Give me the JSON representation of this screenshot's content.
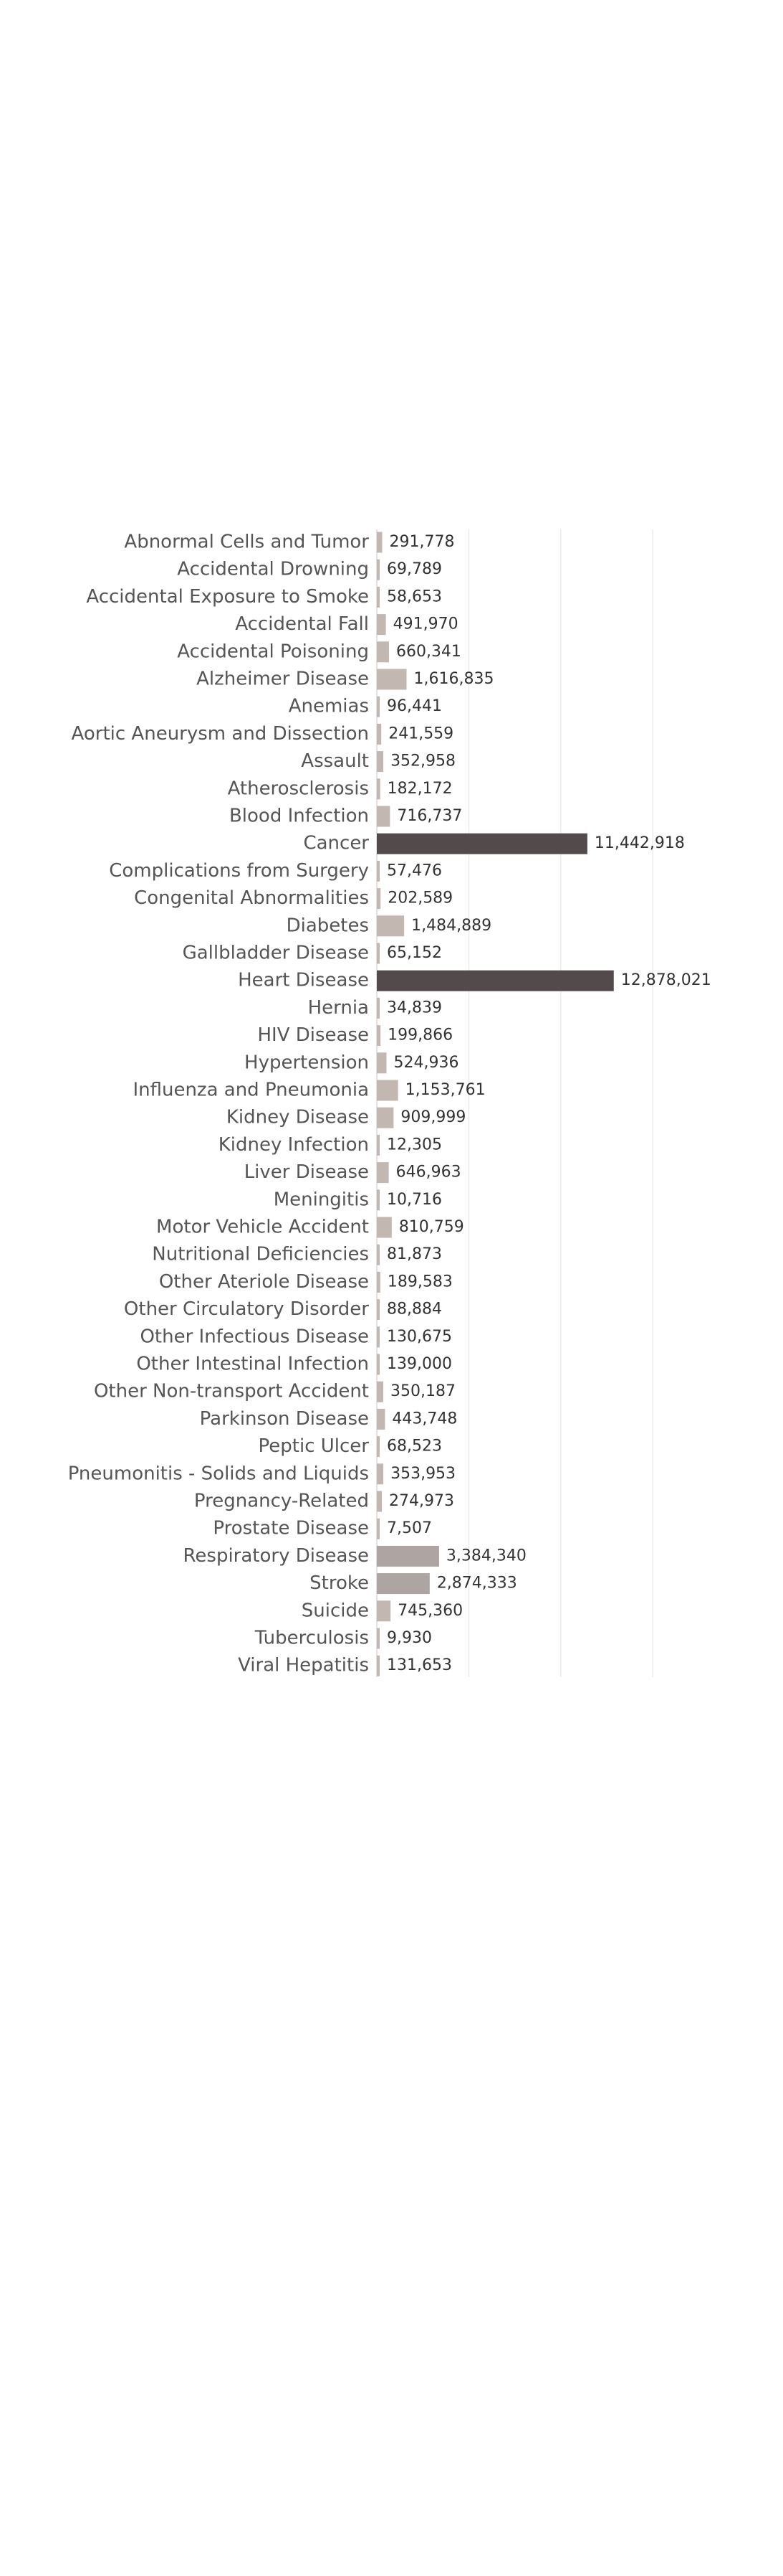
{
  "chart_data": {
    "type": "bar",
    "orientation": "horizontal",
    "title": "",
    "xlabel": "",
    "ylabel": "",
    "xlim": [
      0,
      19000000
    ],
    "grid": true,
    "legend": "none",
    "colors": {
      "default": "#c3b7b2",
      "medium": "#aea4a2",
      "high": "#524a4b",
      "gridline": "#ebebeb"
    },
    "categories": [
      "Abnormal Cells and Tumor",
      "Accidental Drowning",
      "Accidental Exposure to Smoke",
      "Accidental Fall",
      "Accidental Poisoning",
      "Alzheimer Disease",
      "Anemias",
      "Aortic Aneurysm and Dissection",
      "Assault",
      "Atherosclerosis",
      "Blood Infection",
      "Cancer",
      "Complications from Surgery",
      "Congenital Abnormalities",
      "Diabetes",
      "Gallbladder Disease",
      "Heart Disease",
      "Hernia",
      "HIV Disease",
      "Hypertension",
      "Influenza and Pneumonia",
      "Kidney Disease",
      "Kidney Infection",
      "Liver Disease",
      "Meningitis",
      "Motor Vehicle Accident",
      "Nutritional Deficiencies",
      "Other Ateriole Disease",
      "Other Circulatory Disorder",
      "Other Infectious Disease",
      "Other Intestinal Infection",
      "Other Non-transport Accident",
      "Parkinson Disease",
      "Peptic Ulcer",
      "Pneumonitis - Solids and Liquids",
      "Pregnancy-Related",
      "Prostate Disease",
      "Respiratory Disease",
      "Stroke",
      "Suicide",
      "Tuberculosis",
      "Viral Hepatitis"
    ],
    "values": [
      291778,
      69789,
      58653,
      491970,
      660341,
      1616835,
      96441,
      241559,
      352958,
      182172,
      716737,
      11442918,
      57476,
      202589,
      1484889,
      65152,
      12878021,
      34839,
      199866,
      524936,
      1153761,
      909999,
      12305,
      646963,
      10716,
      810759,
      81873,
      189583,
      88884,
      130675,
      139000,
      350187,
      443748,
      68523,
      353953,
      274973,
      7507,
      3384340,
      2874333,
      745360,
      9930,
      131653
    ],
    "value_labels": [
      "291,778",
      "69,789",
      "58,653",
      "491,970",
      "660,341",
      "1,616,835",
      "96,441",
      "241,559",
      "352,958",
      "182,172",
      "716,737",
      "11,442,918",
      "57,476",
      "202,589",
      "1,484,889",
      "65,152",
      "12,878,021",
      "34,839",
      "199,866",
      "524,936",
      "1,153,761",
      "909,999",
      "12,305",
      "646,963",
      "10,716",
      "810,759",
      "81,873",
      "189,583",
      "88,884",
      "130,675",
      "139,000",
      "350,187",
      "443,748",
      "68,523",
      "353,953",
      "274,973",
      "7,507",
      "3,384,340",
      "2,874,333",
      "745,360",
      "9,930",
      "131,653"
    ]
  }
}
